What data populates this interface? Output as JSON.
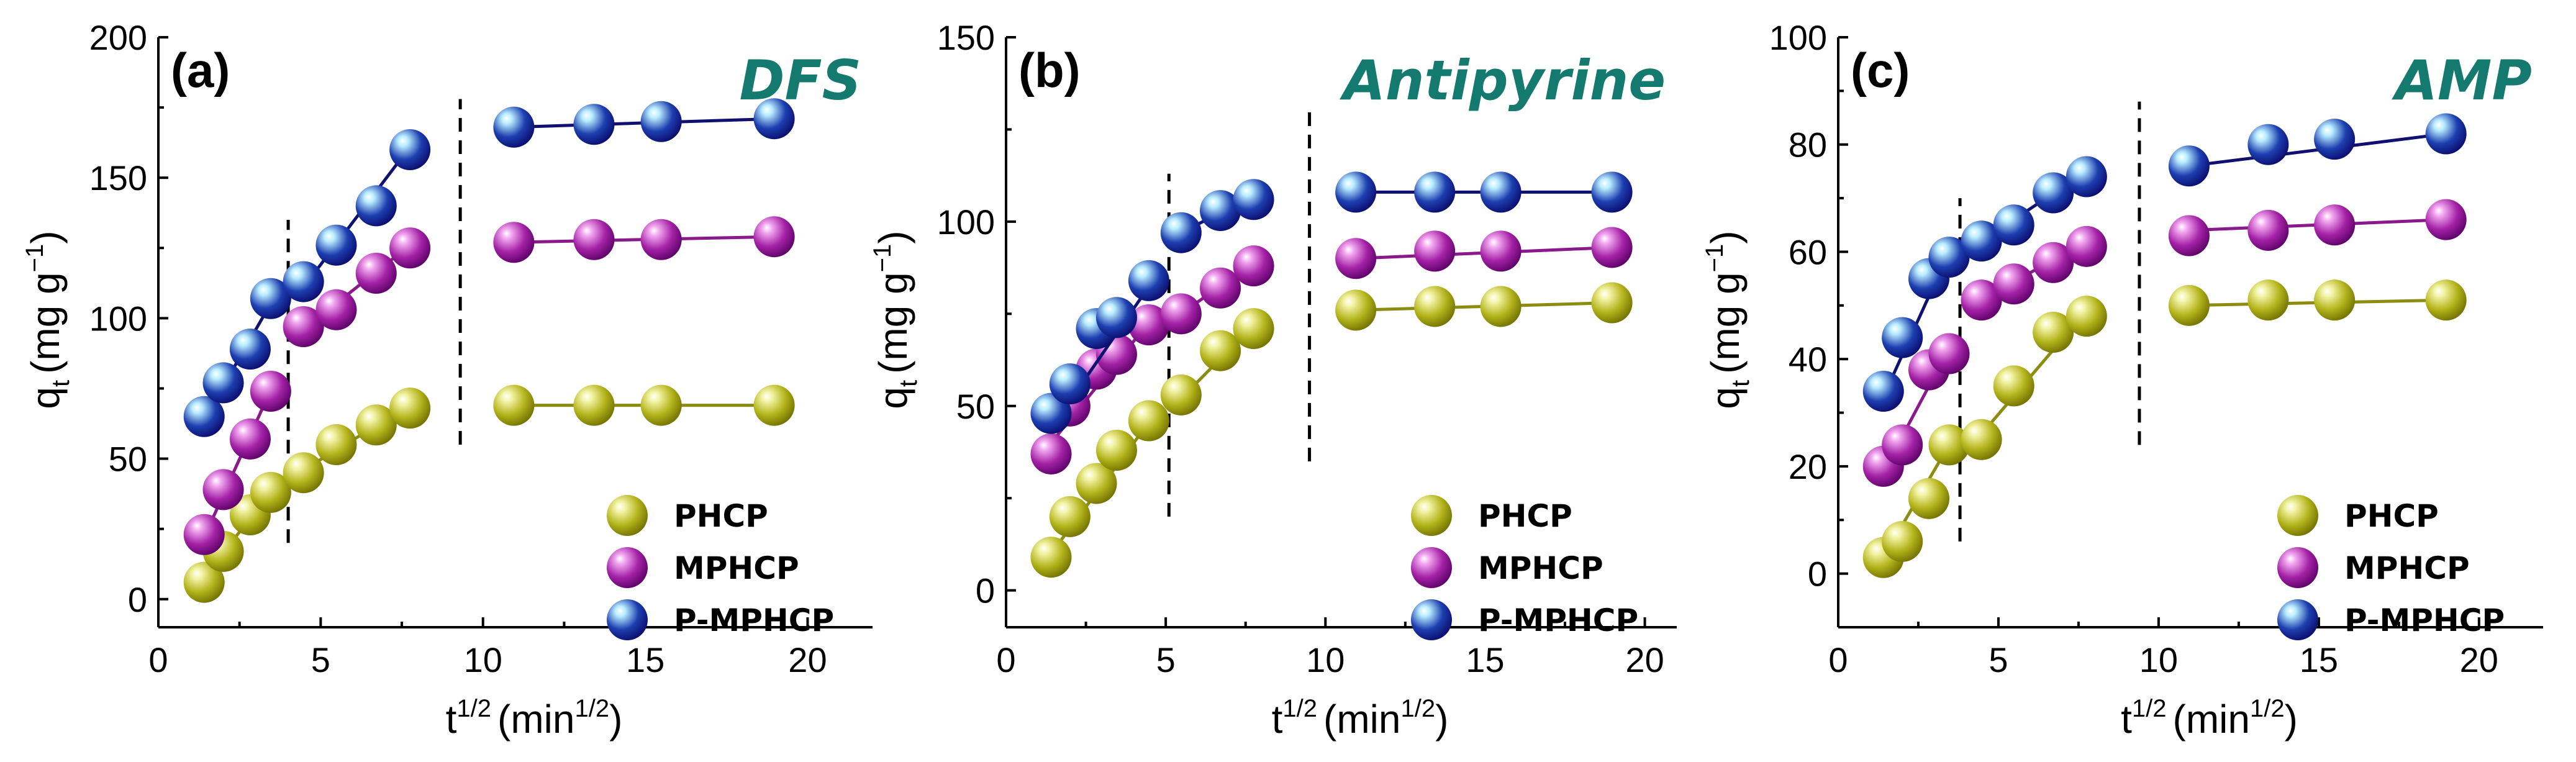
{
  "figure_colors": {
    "compound_label": "#147a70",
    "PHCP": {
      "light": "#f3f3a6",
      "mid": "#b4b41c",
      "dark": "#6f6f00",
      "line": "#8c8c10"
    },
    "MPHCP": {
      "light": "#f1a6ef",
      "mid": "#a422a6",
      "dark": "#5a0066",
      "line": "#8a1a8c"
    },
    "P-MPHCP": {
      "light": "#b8ecff",
      "mid": "#1d3fb0",
      "dark": "#0a0a6b",
      "line": "#101070"
    }
  },
  "chart_data": [
    {
      "type": "scatter",
      "panel_label": "(a)",
      "compound": "DFS",
      "xlabel": "t",
      "xlabel_sup": "1/2",
      "xlabel_unit": "(min",
      "xlabel_unit_sup": "1/2",
      "xlabel_close": ")",
      "ylabel": "q",
      "ylabel_sub": "t",
      "ylabel_unit": "(mg g",
      "ylabel_unit_sup": "−1",
      "ylabel_close": ")",
      "xlim": [
        0,
        22
      ],
      "ylim": [
        -10,
        200
      ],
      "xticks": [
        "0",
        "5",
        "10",
        "15",
        "20"
      ],
      "xtick_values": [
        0,
        5,
        10,
        15,
        20
      ],
      "yticks": [
        "0",
        "50",
        "100",
        "150",
        "200"
      ],
      "ytick_values": [
        0,
        50,
        100,
        150,
        200
      ],
      "dividers": [
        {
          "x": 4.0,
          "y_from": 20,
          "y_to": 135
        },
        {
          "x": 9.3,
          "y_from": 55,
          "y_to": 178
        }
      ],
      "legend": [
        "PHCP",
        "MPHCP",
        "P-MPHCP"
      ],
      "series": [
        {
          "name": "PHCP",
          "x": [
            1.41,
            2.0,
            2.83,
            3.46,
            4.47,
            5.48,
            6.71,
            7.75,
            10.95,
            13.42,
            15.49,
            18.97
          ],
          "y": [
            6,
            17,
            30,
            38,
            45,
            55,
            62,
            68,
            69,
            69,
            69,
            69
          ],
          "fits": [
            {
              "x": [
                1.41,
                3.6
              ],
              "y": [
                8,
                40
              ]
            },
            {
              "x": [
                4.47,
                7.75
              ],
              "y": [
                46,
                69
              ]
            },
            {
              "x": [
                10.95,
                18.97
              ],
              "y": [
                69,
                69
              ]
            }
          ]
        },
        {
          "name": "MPHCP",
          "x": [
            1.41,
            2.0,
            2.83,
            3.46,
            4.47,
            5.48,
            6.71,
            7.75,
            10.95,
            13.42,
            15.49,
            18.97
          ],
          "y": [
            23,
            39,
            57,
            74,
            97,
            103,
            116,
            125,
            127,
            128,
            128,
            129
          ],
          "fits": [
            {
              "x": [
                1.41,
                3.6
              ],
              "y": [
                22,
                78
              ]
            },
            {
              "x": [
                4.47,
                7.75
              ],
              "y": [
                96,
                126
              ]
            },
            {
              "x": [
                10.95,
                18.97
              ],
              "y": [
                127,
                129
              ]
            }
          ]
        },
        {
          "name": "P-MPHCP",
          "x": [
            1.41,
            2.0,
            2.83,
            3.46,
            4.47,
            5.48,
            6.71,
            7.75,
            10.95,
            13.42,
            15.49,
            18.97
          ],
          "y": [
            65,
            77,
            89,
            107,
            113,
            126,
            140,
            160,
            168,
            169,
            170,
            171
          ],
          "fits": [
            {
              "x": [
                1.41,
                3.6
              ],
              "y": [
                64,
                108
              ]
            },
            {
              "x": [
                4.47,
                7.75
              ],
              "y": [
                111,
                161
              ]
            },
            {
              "x": [
                10.95,
                18.97
              ],
              "y": [
                168,
                171
              ]
            }
          ]
        }
      ]
    },
    {
      "type": "scatter",
      "panel_label": "(b)",
      "compound": "Antipyrine",
      "xlabel": "t",
      "xlabel_sup": "1/2",
      "xlabel_unit": "(min",
      "xlabel_unit_sup": "1/2",
      "xlabel_close": ")",
      "ylabel": "q",
      "ylabel_sub": "t",
      "ylabel_unit": "(mg g",
      "ylabel_unit_sup": "−1",
      "ylabel_close": ")",
      "xlim": [
        0,
        21
      ],
      "ylim": [
        -10,
        150
      ],
      "xticks": [
        "0",
        "5",
        "10",
        "15",
        "20"
      ],
      "xtick_values": [
        0,
        5,
        10,
        15,
        20
      ],
      "yticks": [
        "0",
        "50",
        "100",
        "150"
      ],
      "ytick_values": [
        0,
        50,
        100,
        150
      ],
      "dividers": [
        {
          "x": 5.1,
          "y_from": 20,
          "y_to": 113
        },
        {
          "x": 9.5,
          "y_from": 35,
          "y_to": 130
        }
      ],
      "legend": [
        "PHCP",
        "MPHCP",
        "P-MPHCP"
      ],
      "series": [
        {
          "name": "PHCP",
          "x": [
            1.41,
            2.0,
            2.83,
            3.46,
            4.47,
            5.48,
            6.71,
            7.75,
            10.95,
            13.42,
            15.49,
            18.97
          ],
          "y": [
            9,
            20,
            29,
            38,
            46,
            53,
            65,
            71,
            76,
            77,
            77,
            78
          ],
          "fits": [
            {
              "x": [
                1.41,
                4.6
              ],
              "y": [
                10,
                47
              ]
            },
            {
              "x": [
                5.48,
                7.75
              ],
              "y": [
                52,
                72
              ]
            },
            {
              "x": [
                10.95,
                18.97
              ],
              "y": [
                76,
                78
              ]
            }
          ]
        },
        {
          "name": "MPHCP",
          "x": [
            1.41,
            2.0,
            2.83,
            3.46,
            4.47,
            5.48,
            6.71,
            7.75,
            10.95,
            13.42,
            15.49,
            18.97
          ],
          "y": [
            37,
            50,
            60,
            64,
            72,
            75,
            82,
            88,
            90,
            92,
            92,
            93
          ],
          "fits": [
            {
              "x": [
                1.41,
                4.6
              ],
              "y": [
                40,
                74
              ]
            },
            {
              "x": [
                5.48,
                7.75
              ],
              "y": [
                75,
                89
              ]
            },
            {
              "x": [
                10.95,
                18.97
              ],
              "y": [
                90,
                93
              ]
            }
          ]
        },
        {
          "name": "P-MPHCP",
          "x": [
            1.41,
            2.0,
            2.83,
            3.46,
            4.47,
            5.48,
            6.71,
            7.75,
            10.95,
            13.42,
            15.49,
            18.97
          ],
          "y": [
            48,
            56,
            71,
            74,
            84,
            97,
            103,
            106,
            108,
            108,
            108,
            108
          ],
          "fits": [
            {
              "x": [
                1.41,
                4.6
              ],
              "y": [
                44,
                84
              ]
            },
            {
              "x": [
                5.48,
                7.75
              ],
              "y": [
                97,
                107
              ]
            },
            {
              "x": [
                10.95,
                18.97
              ],
              "y": [
                108,
                108
              ]
            }
          ]
        }
      ]
    },
    {
      "type": "scatter",
      "panel_label": "(c)",
      "compound": "AMP",
      "xlabel": "t",
      "xlabel_sup": "1/2",
      "xlabel_unit": "(min",
      "xlabel_unit_sup": "1/2",
      "xlabel_close": ")",
      "ylabel": "q",
      "ylabel_sub": "t",
      "ylabel_unit": "(mg g",
      "ylabel_unit_sup": "−1",
      "ylabel_close": ")",
      "xlim": [
        0,
        22
      ],
      "ylim": [
        -10,
        100
      ],
      "xticks": [
        "0",
        "5",
        "10",
        "15",
        "20"
      ],
      "xtick_values": [
        0,
        5,
        10,
        15,
        20
      ],
      "yticks": [
        "0",
        "20",
        "40",
        "60",
        "80",
        "100"
      ],
      "ytick_values": [
        0,
        20,
        40,
        60,
        80,
        100
      ],
      "dividers": [
        {
          "x": 3.8,
          "y_from": 6,
          "y_to": 70
        },
        {
          "x": 9.4,
          "y_from": 24,
          "y_to": 88
        }
      ],
      "legend": [
        "PHCP",
        "MPHCP",
        "P-MPHCP"
      ],
      "series": [
        {
          "name": "PHCP",
          "x": [
            1.41,
            2.0,
            2.83,
            3.46,
            4.47,
            5.48,
            6.71,
            7.75,
            10.95,
            13.42,
            15.49,
            18.97
          ],
          "y": [
            3,
            6,
            14,
            24,
            25,
            35,
            45,
            48,
            50,
            51,
            51,
            51
          ],
          "fits": [
            {
              "x": [
                1.41,
                3.46
              ],
              "y": [
                3,
                24
              ]
            },
            {
              "x": [
                4.47,
                7.75
              ],
              "y": [
                26,
                49
              ]
            },
            {
              "x": [
                10.95,
                18.97
              ],
              "y": [
                50,
                51
              ]
            }
          ]
        },
        {
          "name": "MPHCP",
          "x": [
            1.41,
            2.0,
            2.83,
            3.46,
            4.47,
            5.48,
            6.71,
            7.75,
            10.95,
            13.42,
            15.49,
            18.97
          ],
          "y": [
            20,
            24,
            38,
            41,
            51,
            54,
            58,
            61,
            63,
            64,
            65,
            66
          ],
          "fits": [
            {
              "x": [
                1.41,
                3.46
              ],
              "y": [
                19,
                42
              ]
            },
            {
              "x": [
                4.47,
                7.75
              ],
              "y": [
                51,
                62
              ]
            },
            {
              "x": [
                10.95,
                18.97
              ],
              "y": [
                64,
                66
              ]
            }
          ]
        },
        {
          "name": "P-MPHCP",
          "x": [
            1.41,
            2.0,
            2.83,
            3.46,
            4.47,
            5.48,
            6.71,
            7.75,
            10.95,
            13.42,
            15.49,
            18.97
          ],
          "y": [
            34,
            44,
            55,
            59,
            62,
            65,
            71,
            74,
            76,
            80,
            81,
            82
          ],
          "fits": [
            {
              "x": [
                1.41,
                3.46
              ],
              "y": [
                33,
                60
              ]
            },
            {
              "x": [
                4.47,
                7.75
              ],
              "y": [
                62,
                75
              ]
            },
            {
              "x": [
                10.95,
                18.97
              ],
              "y": [
                76,
                82
              ]
            }
          ]
        }
      ]
    }
  ]
}
